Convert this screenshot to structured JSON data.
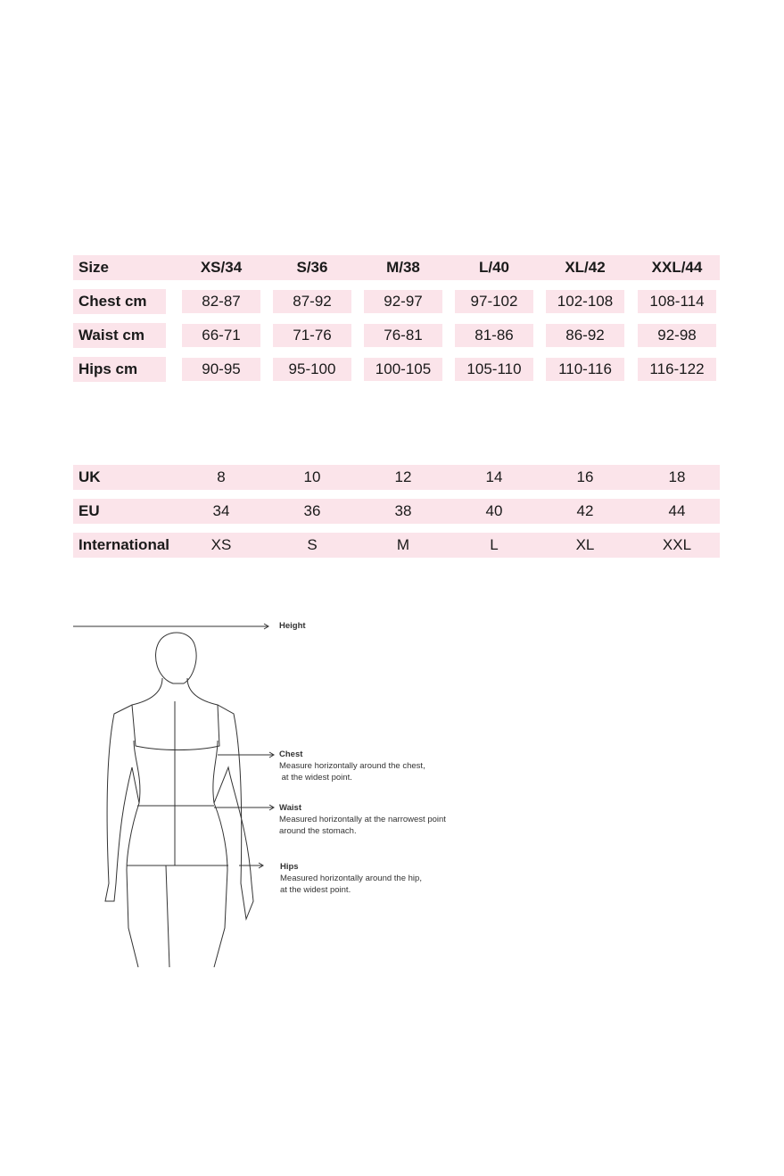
{
  "measurements_table": {
    "headers": [
      "Size",
      "XS/34",
      "S/36",
      "M/38",
      "L/40",
      "XL/42",
      "XXL/44"
    ],
    "rows": [
      {
        "label": "Chest cm",
        "values": [
          "82-87",
          "87-92",
          "92-97",
          "97-102",
          "102-108",
          "108-114"
        ]
      },
      {
        "label": "Waist cm",
        "values": [
          "66-71",
          "71-76",
          "76-81",
          "81-86",
          "86-92",
          "92-98"
        ]
      },
      {
        "label": "Hips cm",
        "values": [
          "90-95",
          "95-100",
          "100-105",
          "105-110",
          "110-116",
          "116-122"
        ]
      }
    ]
  },
  "conversion_table": {
    "rows": [
      {
        "label": "UK",
        "values": [
          "8",
          "10",
          "12",
          "14",
          "16",
          "18"
        ]
      },
      {
        "label": "EU",
        "values": [
          "34",
          "36",
          "38",
          "40",
          "42",
          "44"
        ]
      },
      {
        "label": "International",
        "values": [
          "XS",
          "S",
          "M",
          "L",
          "XL",
          "XXL"
        ]
      }
    ]
  },
  "diagram": {
    "height": {
      "title": "Height"
    },
    "chest": {
      "title": "Chest",
      "line1": "Measure horizontally around the chest,",
      "line2": "at the widest point."
    },
    "waist": {
      "title": "Waist",
      "line1": "Measured horizontally at the narrowest point",
      "line2": "around the stomach."
    },
    "hips": {
      "title": "Hips",
      "line1": "Measured horizontally around the hip,",
      "line2": "at the widest point."
    }
  },
  "colors": {
    "cell_bg": "#fbe4ea",
    "text": "#1a1a1a"
  }
}
